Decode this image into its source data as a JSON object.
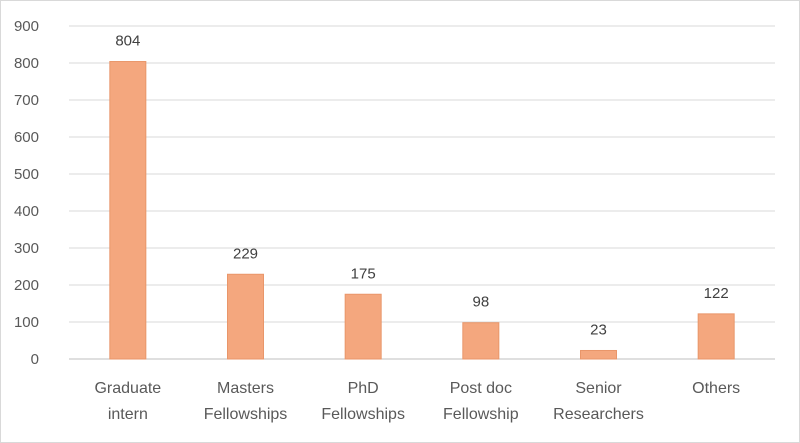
{
  "chart_data": {
    "type": "bar",
    "title": "",
    "xlabel": "",
    "ylabel": "",
    "categories": [
      [
        "Graduate",
        "intern"
      ],
      [
        "Masters",
        "Fellowships"
      ],
      [
        "PhD",
        "Fellowships"
      ],
      [
        "Post doc",
        "Fellowship"
      ],
      [
        "Senior",
        "Researchers"
      ],
      [
        "Others"
      ]
    ],
    "values": [
      804,
      229,
      175,
      98,
      23,
      122
    ],
    "ylim": [
      0,
      900
    ],
    "yticks": [
      0,
      100,
      200,
      300,
      400,
      500,
      600,
      700,
      800,
      900
    ],
    "grid": true,
    "legend": "none",
    "data_labels": true,
    "colors": {
      "bar_fill": "#F4A77E",
      "bar_stroke": "#E9966A",
      "grid": "#d9d9d9",
      "axis": "#bfbfbf"
    }
  }
}
